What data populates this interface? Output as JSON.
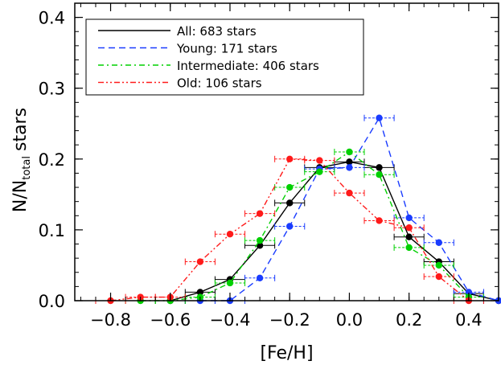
{
  "chart_data": {
    "type": "line",
    "xlabel": "[Fe/H]",
    "ylabel_main": "N/N",
    "ylabel_sub": "total",
    "ylabel_tail": "stars",
    "xlim": [
      -0.92,
      0.5
    ],
    "ylim": [
      0,
      0.42
    ],
    "x_ticks": [
      -0.8,
      -0.6,
      -0.4,
      -0.2,
      0.0,
      0.2,
      0.4
    ],
    "x_tick_labels": [
      "−0.8",
      "−0.6",
      "−0.4",
      "−0.2",
      "0.0",
      "0.2",
      "0.4"
    ],
    "y_ticks": [
      0.0,
      0.1,
      0.2,
      0.3,
      0.4
    ],
    "y_tick_labels": [
      "0.0",
      "0.1",
      "0.2",
      "0.3",
      "0.4"
    ],
    "grid": false,
    "legend_position": "top-left",
    "x_error": 0.05,
    "series": [
      {
        "name": "All: 683 stars",
        "color": "#000000",
        "dash": "solid",
        "x": [
          -0.6,
          -0.5,
          -0.4,
          -0.3,
          -0.2,
          -0.1,
          0.0,
          0.1,
          0.2,
          0.3,
          0.4,
          0.5
        ],
        "y": [
          0.0,
          0.012,
          0.03,
          0.078,
          0.138,
          0.188,
          0.196,
          0.188,
          0.09,
          0.055,
          0.01,
          0.0
        ]
      },
      {
        "name": "Young: 171 stars",
        "color": "#1a3cff",
        "dash": "dashed",
        "x": [
          -0.5,
          -0.4,
          -0.3,
          -0.2,
          -0.1,
          0.0,
          0.1,
          0.2,
          0.3,
          0.4,
          0.5
        ],
        "y": [
          0.0,
          0.0,
          0.032,
          0.105,
          0.186,
          0.188,
          0.258,
          0.117,
          0.082,
          0.012,
          0.0
        ]
      },
      {
        "name": "Intermediate: 406 stars",
        "color": "#00d000",
        "dash": "dashdot",
        "x": [
          -0.7,
          -0.6,
          -0.5,
          -0.4,
          -0.3,
          -0.2,
          -0.1,
          0.0,
          0.1,
          0.2,
          0.3,
          0.4
        ],
        "y": [
          0.0,
          0.0,
          0.005,
          0.025,
          0.085,
          0.16,
          0.182,
          0.21,
          0.178,
          0.075,
          0.05,
          0.005
        ]
      },
      {
        "name": "Old: 106 stars",
        "color": "#ff1a1a",
        "dash": "dashdotdot",
        "x": [
          -0.8,
          -0.7,
          -0.6,
          -0.5,
          -0.4,
          -0.3,
          -0.2,
          -0.1,
          0.0,
          0.1,
          0.2,
          0.3,
          0.4
        ],
        "y": [
          0.0,
          0.005,
          0.005,
          0.055,
          0.094,
          0.123,
          0.2,
          0.198,
          0.152,
          0.113,
          0.103,
          0.034,
          0.0
        ]
      }
    ]
  }
}
